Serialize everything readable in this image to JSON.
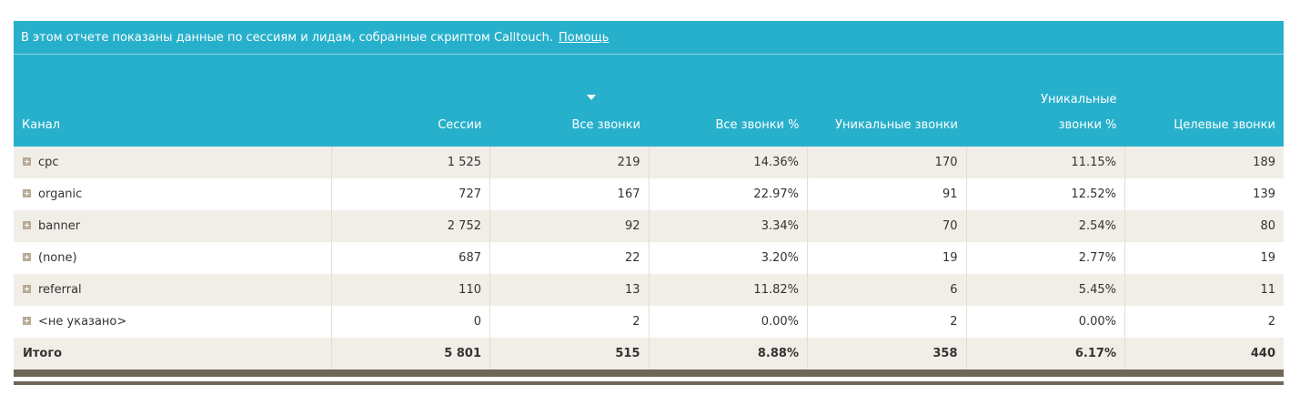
{
  "info": {
    "text": "В этом отчете показаны данные по сессиям и лидам, собранные скриптом Calltouch.",
    "help_link": "Помощь"
  },
  "columns": [
    {
      "label": "Канал"
    },
    {
      "label": "Сессии"
    },
    {
      "label": "Все звонки",
      "sorted": "desc"
    },
    {
      "label": "Все звонки %"
    },
    {
      "label": "Уникальные звонки"
    },
    {
      "label": "Уникальные\nзвонки %"
    },
    {
      "label": "Целевые звонки"
    }
  ],
  "rows": [
    {
      "channel": "cpc",
      "sessions": "1 525",
      "calls": "219",
      "calls_pct": "14.36%",
      "unique": "170",
      "unique_pct": "11.15%",
      "target": "189"
    },
    {
      "channel": "organic",
      "sessions": "727",
      "calls": "167",
      "calls_pct": "22.97%",
      "unique": "91",
      "unique_pct": "12.52%",
      "target": "139"
    },
    {
      "channel": "banner",
      "sessions": "2 752",
      "calls": "92",
      "calls_pct": "3.34%",
      "unique": "70",
      "unique_pct": "2.54%",
      "target": "80"
    },
    {
      "channel": "(none)",
      "sessions": "687",
      "calls": "22",
      "calls_pct": "3.20%",
      "unique": "19",
      "unique_pct": "2.77%",
      "target": "19"
    },
    {
      "channel": "referral",
      "sessions": "110",
      "calls": "13",
      "calls_pct": "11.82%",
      "unique": "6",
      "unique_pct": "5.45%",
      "target": "11"
    },
    {
      "channel": "<не указано>",
      "sessions": "0",
      "calls": "2",
      "calls_pct": "0.00%",
      "unique": "2",
      "unique_pct": "0.00%",
      "target": "2"
    }
  ],
  "total": {
    "label": "Итого",
    "sessions": "5 801",
    "calls": "515",
    "calls_pct": "8.88%",
    "unique": "358",
    "unique_pct": "6.17%",
    "target": "440"
  },
  "colors": {
    "header_bg": "#27b0cb",
    "row_alt_bg": "#f1eee8",
    "expand_icon": "#b7ab96",
    "bottom_bar": "#6e6658"
  },
  "icons": {
    "expand": "plus-square-icon",
    "sort": "sort-desc-arrow-icon"
  }
}
